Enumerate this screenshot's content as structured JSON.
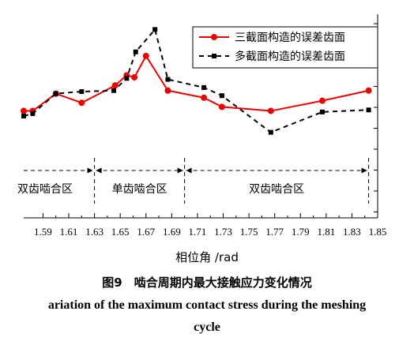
{
  "chart_data": {
    "type": "line",
    "xlabel": "相位角 /rad",
    "ylabel": "",
    "x_ticks": [
      "1.59",
      "1.61",
      "1.63",
      "1.65",
      "1.67",
      "1.69",
      "1.71",
      "1.73",
      "1.75",
      "1.77",
      "1.79",
      "1.81",
      "1.83",
      "1.85"
    ],
    "xlim": [
      1.575,
      1.85
    ],
    "ylim": [
      0,
      1
    ],
    "grid": false,
    "legend_position": "top-right",
    "series": [
      {
        "name": "三截面构造的误差齿面",
        "color": "#ee0000",
        "style": "solid",
        "x": [
          1.575,
          1.582,
          1.6,
          1.62,
          1.646,
          1.655,
          1.661,
          1.67,
          1.687,
          1.715,
          1.729,
          1.767,
          1.807,
          1.843
        ],
        "y": [
          0.525,
          0.525,
          0.61,
          0.565,
          0.65,
          0.7,
          0.69,
          0.795,
          0.625,
          0.59,
          0.545,
          0.525,
          0.575,
          0.625
        ]
      },
      {
        "name": "多截面构造的误差齿面",
        "color": "#000000",
        "style": "dashed",
        "x": [
          1.575,
          1.582,
          1.6,
          1.62,
          1.645,
          1.655,
          1.662,
          1.677,
          1.687,
          1.715,
          1.729,
          1.767,
          1.807,
          1.843
        ],
        "y": [
          0.5,
          0.512,
          0.61,
          0.62,
          0.625,
          0.685,
          0.815,
          0.925,
          0.68,
          0.64,
          0.6,
          0.42,
          0.52,
          0.53
        ]
      }
    ],
    "regions": [
      {
        "label": "双齿啮合区",
        "from": 1.575,
        "to": 1.63
      },
      {
        "label": "单齿啮合区",
        "from": 1.63,
        "to": 1.7
      },
      {
        "label": "双齿啮合区",
        "from": 1.7,
        "to": 1.843
      }
    ]
  },
  "caption": {
    "cn": "图9　啮合周期内最大接触应力变化情况",
    "en_line1": "ariation of the maximum contact stress during the meshing",
    "en_line2": "cycle"
  }
}
